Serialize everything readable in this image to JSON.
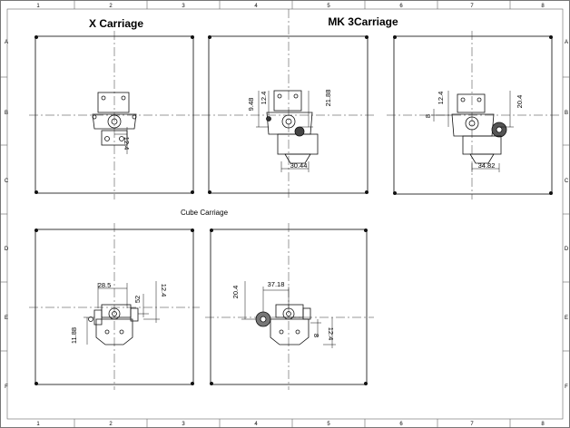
{
  "sheet": {
    "column_labels": [
      "1",
      "2",
      "3",
      "4",
      "5",
      "6",
      "7",
      "8"
    ],
    "row_labels": [
      "A",
      "B",
      "C",
      "D",
      "E",
      "F"
    ]
  },
  "titles": {
    "x_carriage": "X Carriage",
    "mk3_carriage": "MK 3Carriage",
    "cube_carriage": "Cube Carriage"
  },
  "dimensions": {
    "x_carriage": {
      "offset": "12.4"
    },
    "mk3_left": {
      "v1": "9.48",
      "v2": "12.4",
      "v3": "21.88",
      "h1": "30.44"
    },
    "mk3_right": {
      "v1": "8",
      "v2": "12.4",
      "v3": "20.4",
      "h1": "34.82"
    },
    "cube_left": {
      "h1": "28.5",
      "v1": "52",
      "v2": "12.4",
      "v3": "11.88"
    },
    "cube_right": {
      "h1": "37.18",
      "v1": "20.4",
      "v2": "8",
      "v3": "12.4"
    }
  }
}
